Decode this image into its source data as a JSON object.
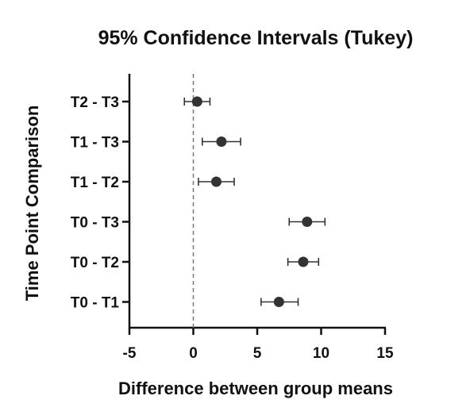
{
  "chart_data": {
    "type": "forest",
    "title": "95% Confidence Intervals (Tukey)",
    "xlabel": "Difference between group means",
    "ylabel": "Time Point Comparison",
    "xlim": [
      -5,
      15
    ],
    "xticks": [
      "-5",
      "0",
      "5",
      "10",
      "15"
    ],
    "reference_line_x": 0,
    "point_color": "#333333",
    "comparisons": [
      {
        "label": "T2 - T3",
        "estimate": 0.3,
        "lower": -0.7,
        "upper": 1.3
      },
      {
        "label": "T1 - T3",
        "estimate": 2.2,
        "lower": 0.7,
        "upper": 3.7
      },
      {
        "label": "T1 - T2",
        "estimate": 1.8,
        "lower": 0.4,
        "upper": 3.2
      },
      {
        "label": "T0 - T3",
        "estimate": 8.9,
        "lower": 7.5,
        "upper": 10.3
      },
      {
        "label": "T0 - T2",
        "estimate": 8.6,
        "lower": 7.4,
        "upper": 9.8
      },
      {
        "label": "T0 - T1",
        "estimate": 6.7,
        "lower": 5.3,
        "upper": 8.2
      }
    ]
  }
}
